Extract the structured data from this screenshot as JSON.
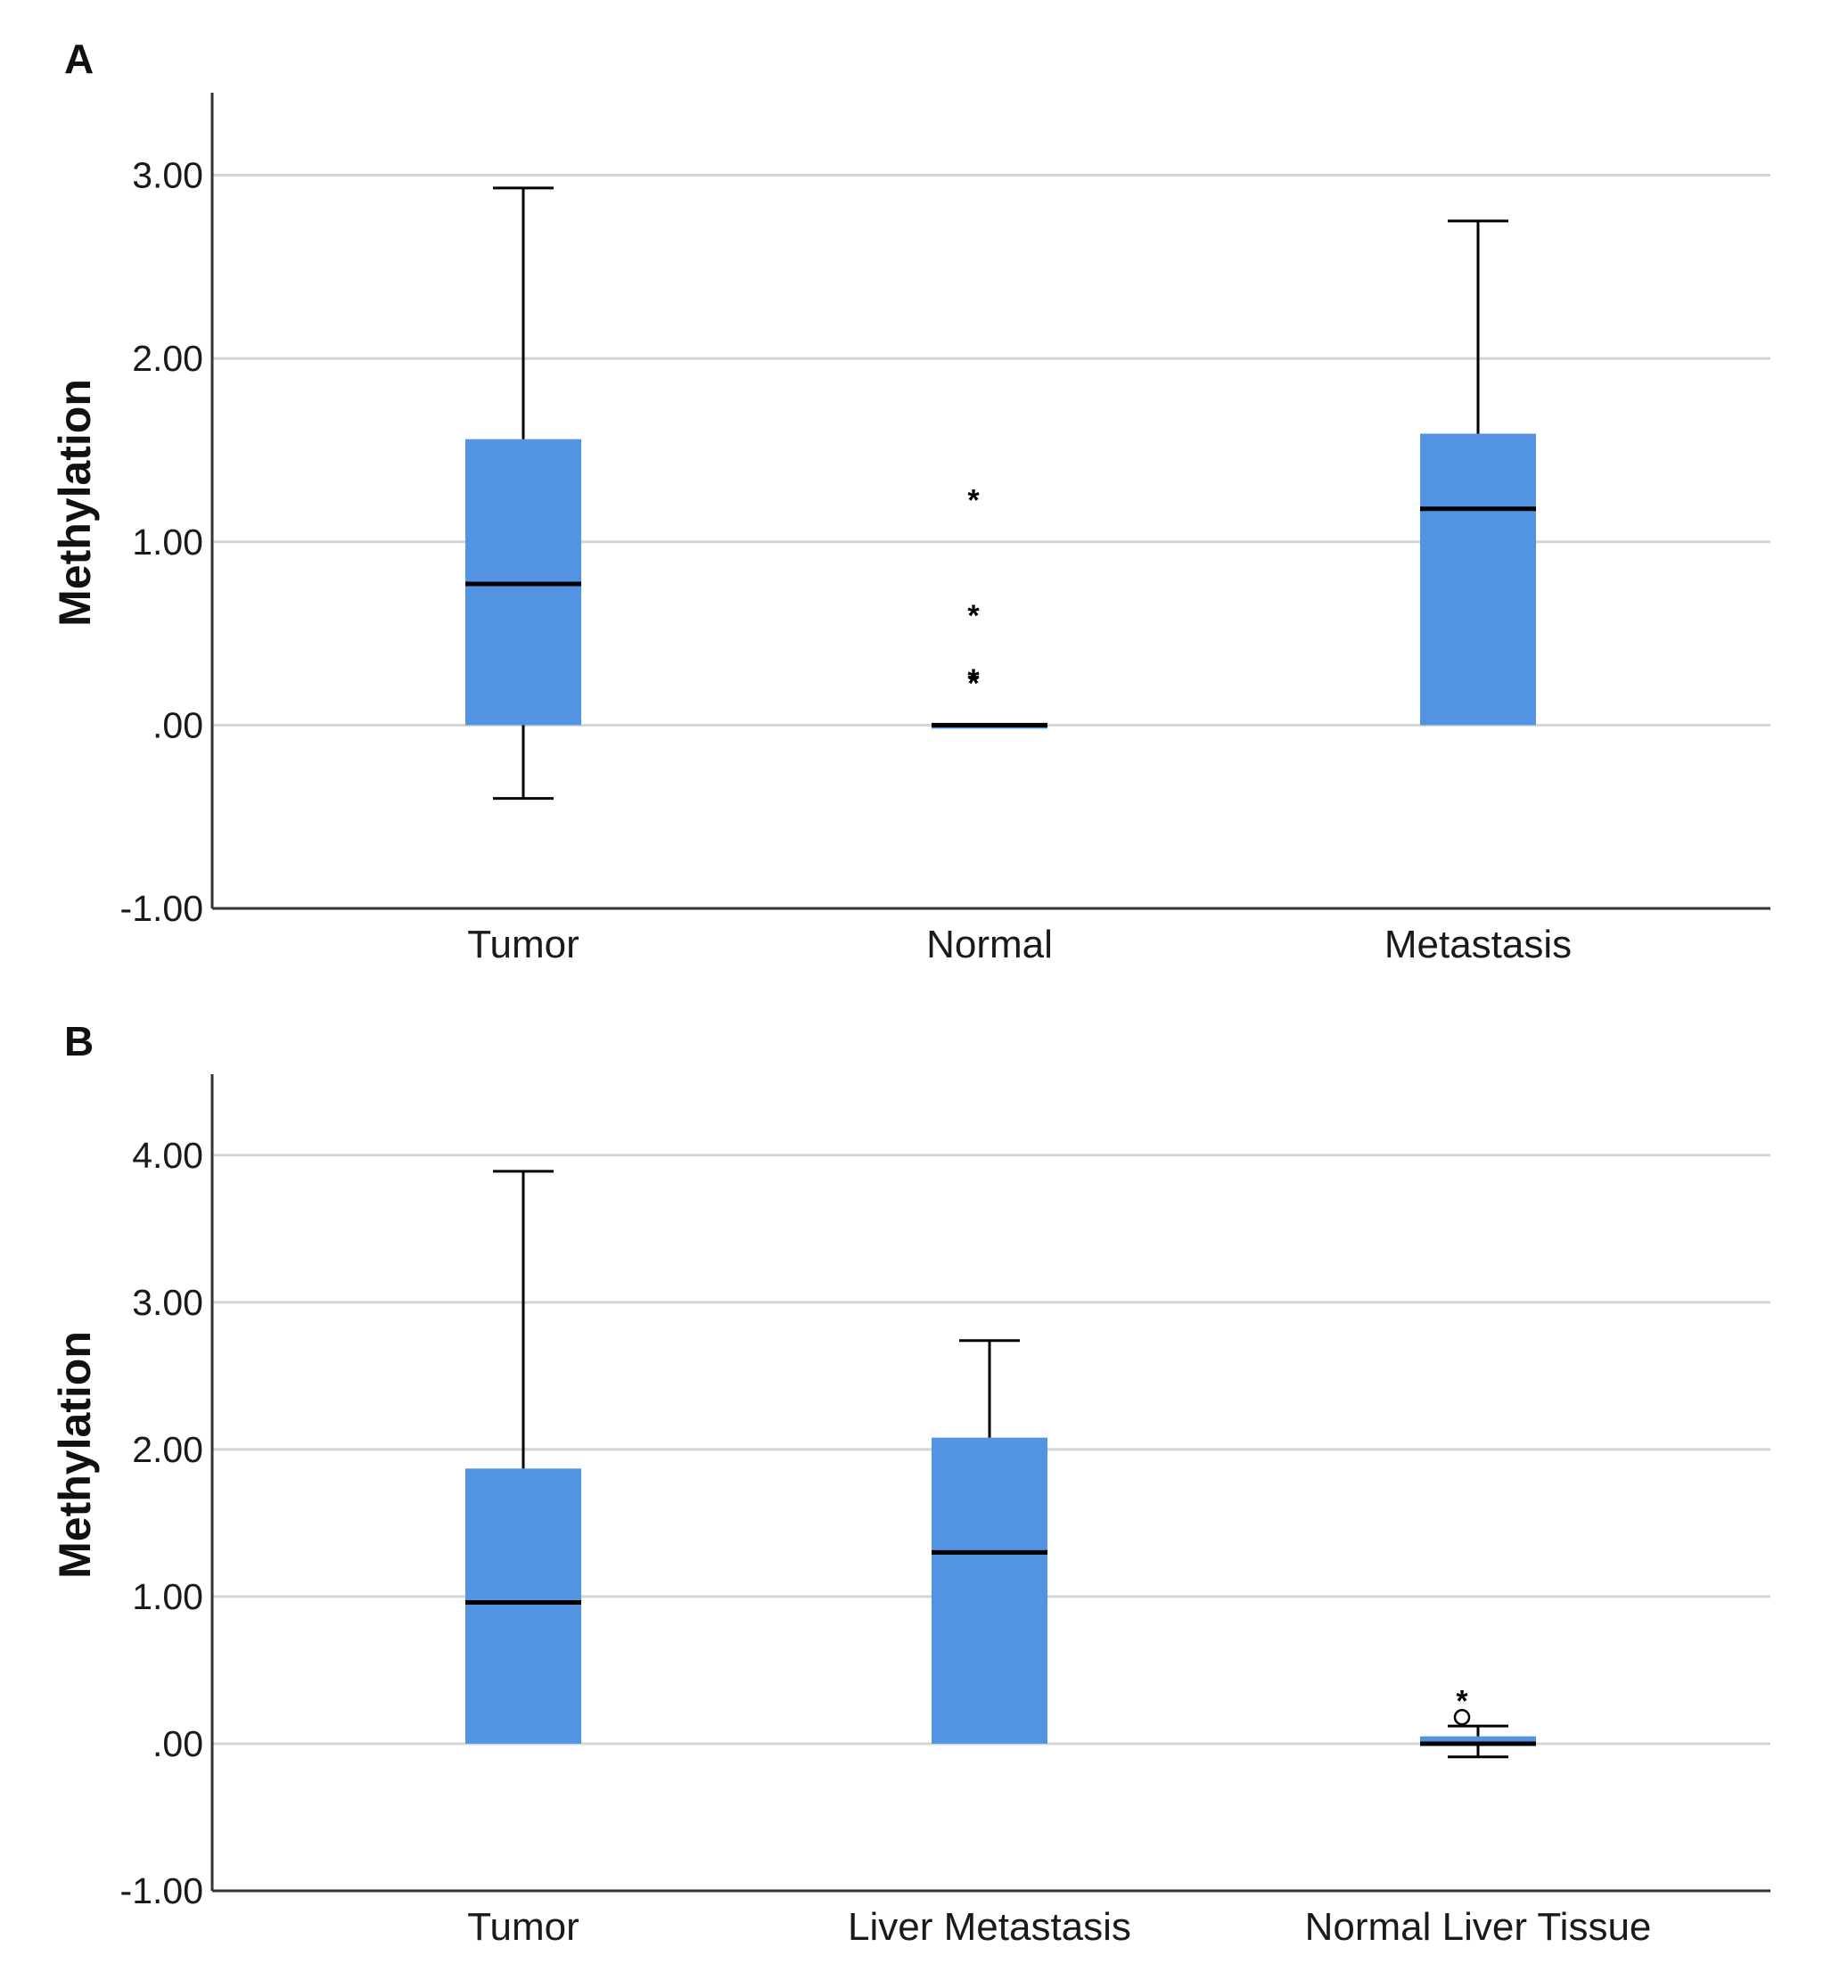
{
  "figure": {
    "box_color": "#5294e2",
    "median_color": "#000000",
    "whisker_color": "#000000",
    "grid_color": "#d4d4d4",
    "axis_color": "#333333"
  },
  "chart_data": [
    {
      "panel_label": "A",
      "type": "boxplot",
      "title": "",
      "xlabel": "",
      "ylabel": "Methylation",
      "ylim": [
        -1.0,
        3.45
      ],
      "yticks": [
        -1.0,
        0.0,
        1.0,
        2.0,
        3.0
      ],
      "ytick_labels": [
        "-1.00",
        ".00",
        "1.00",
        "2.00",
        "3.00"
      ],
      "gridlines": [
        0.0,
        1.0,
        2.0,
        3.0
      ],
      "categories": [
        "Tumor",
        "Normal",
        "Metastasis"
      ],
      "boxes": [
        {
          "name": "Tumor",
          "whisker_low": -0.4,
          "q1": 0.0,
          "median": 0.77,
          "q3": 1.56,
          "whisker_high": 2.93,
          "outliers": [],
          "extremes": []
        },
        {
          "name": "Normal",
          "whisker_low": 0.0,
          "q1": 0.0,
          "median": 0.0,
          "q3": 0.0,
          "whisker_high": 0.0,
          "outliers": [],
          "extremes": [
            1.26,
            0.63,
            0.28,
            0.26
          ]
        },
        {
          "name": "Metastasis",
          "whisker_low": 0.0,
          "q1": 0.0,
          "median": 1.18,
          "q3": 1.59,
          "whisker_high": 2.75,
          "outliers": [],
          "extremes": []
        }
      ]
    },
    {
      "panel_label": "B",
      "type": "boxplot",
      "title": "",
      "xlabel": "",
      "ylabel": "Methylation",
      "ylim": [
        -1.0,
        4.55
      ],
      "yticks": [
        -1.0,
        0.0,
        1.0,
        2.0,
        3.0,
        4.0
      ],
      "ytick_labels": [
        "-1.00",
        ".00",
        "1.00",
        "2.00",
        "3.00",
        "4.00"
      ],
      "gridlines": [
        0.0,
        1.0,
        2.0,
        3.0,
        4.0
      ],
      "categories": [
        "Tumor",
        "Liver Metastasis",
        "Normal Liver Tissue"
      ],
      "boxes": [
        {
          "name": "Tumor",
          "whisker_low": 0.0,
          "q1": 0.0,
          "median": 0.96,
          "q3": 1.87,
          "whisker_high": 3.89,
          "outliers": [],
          "extremes": []
        },
        {
          "name": "Liver Metastasis",
          "whisker_low": 0.0,
          "q1": 0.0,
          "median": 1.3,
          "q3": 2.08,
          "whisker_high": 2.74,
          "outliers": [],
          "extremes": []
        },
        {
          "name": "Normal Liver Tissue",
          "whisker_low": -0.09,
          "q1": 0.0,
          "median": 0.0,
          "q3": 0.05,
          "whisker_high": 0.12,
          "outliers": [
            0.18
          ],
          "extremes": [
            0.33
          ]
        }
      ]
    }
  ]
}
